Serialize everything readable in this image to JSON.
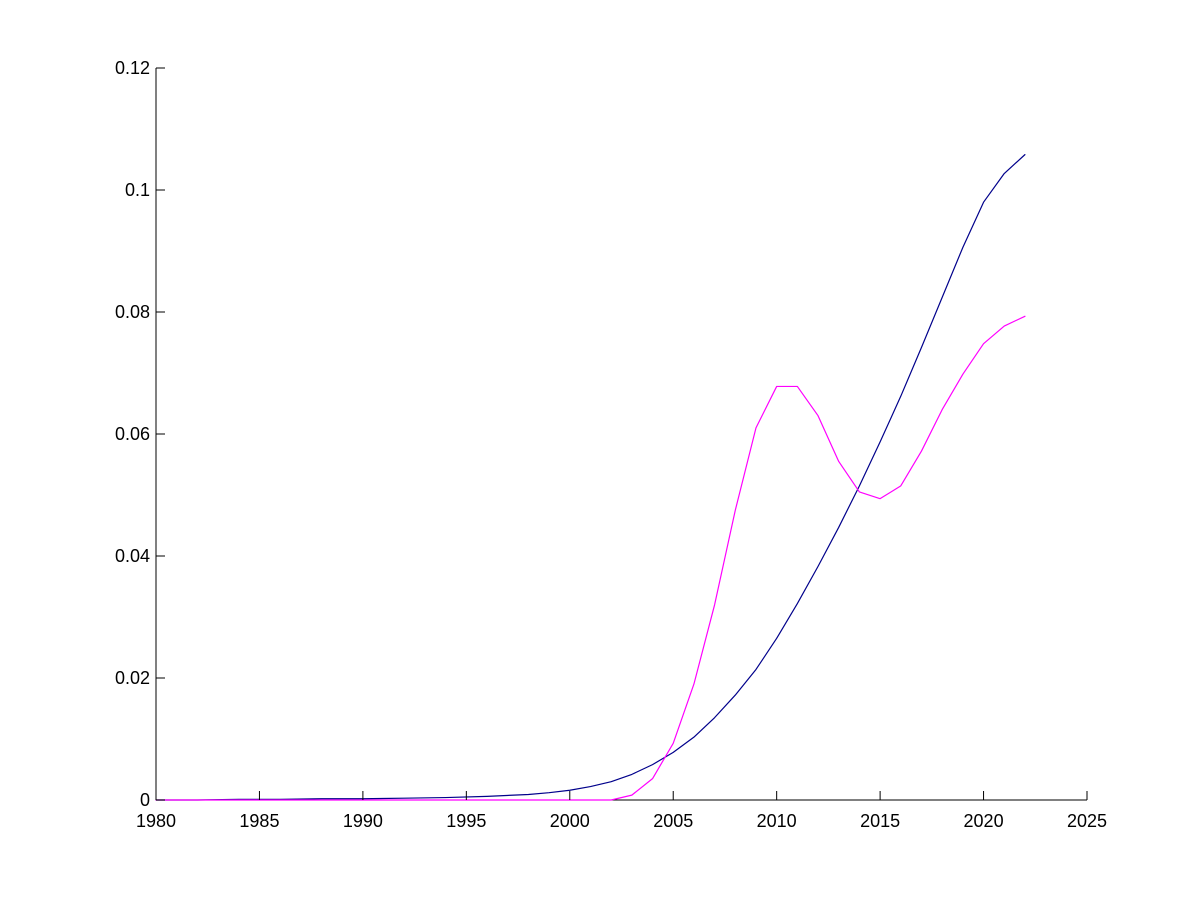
{
  "chart_data": {
    "type": "line",
    "title": "",
    "xlabel": "",
    "ylabel": "",
    "xlim": [
      1980,
      2025
    ],
    "ylim": [
      0,
      0.12
    ],
    "xticks": [
      1980,
      1985,
      1990,
      1995,
      2000,
      2005,
      2010,
      2015,
      2020,
      2025
    ],
    "yticks": [
      0,
      0.02,
      0.04,
      0.06,
      0.08,
      0.1,
      0.12
    ],
    "xtick_labels": [
      "1980",
      "1985",
      "1990",
      "1995",
      "2000",
      "2005",
      "2010",
      "2015",
      "2020",
      "2025"
    ],
    "ytick_labels": [
      "0",
      "0.02",
      "0.04",
      "0.06",
      "0.08",
      "0.1",
      "0.12"
    ],
    "grid": false,
    "legend": "none",
    "series": [
      {
        "color": "#00008b",
        "x": [
          1980,
          1982,
          1984,
          1986,
          1988,
          1990,
          1992,
          1994,
          1996,
          1998,
          1999,
          2000,
          2001,
          2002,
          2003,
          2004,
          2005,
          2006,
          2007,
          2008,
          2009,
          2010,
          2011,
          2012,
          2013,
          2014,
          2015,
          2016,
          2017,
          2018,
          2019,
          2020,
          2021,
          2022
        ],
        "y": [
          0,
          0,
          0.0001,
          0.0001,
          0.0002,
          0.0002,
          0.0003,
          0.0004,
          0.0006,
          0.0009,
          0.0012,
          0.0016,
          0.0022,
          0.003,
          0.0042,
          0.0058,
          0.0078,
          0.0103,
          0.0135,
          0.0172,
          0.0214,
          0.0265,
          0.0322,
          0.0383,
          0.0447,
          0.0515,
          0.0587,
          0.0662,
          0.0742,
          0.0824,
          0.0906,
          0.098,
          0.1027,
          0.1058
        ]
      },
      {
        "color": "#ff00ff",
        "x": [
          1980,
          1985,
          1990,
          1995,
          2000,
          2002,
          2003,
          2004,
          2005,
          2006,
          2007,
          2008,
          2009,
          2010,
          2011,
          2012,
          2013,
          2014,
          2015,
          2016,
          2017,
          2018,
          2019,
          2020,
          2021,
          2022
        ],
        "y": [
          0,
          0,
          0,
          0,
          0,
          0,
          0.0008,
          0.0035,
          0.0093,
          0.019,
          0.032,
          0.0475,
          0.061,
          0.0678,
          0.0678,
          0.063,
          0.0555,
          0.0505,
          0.0494,
          0.0515,
          0.0572,
          0.064,
          0.0698,
          0.0748,
          0.0777,
          0.0793
        ]
      }
    ]
  }
}
